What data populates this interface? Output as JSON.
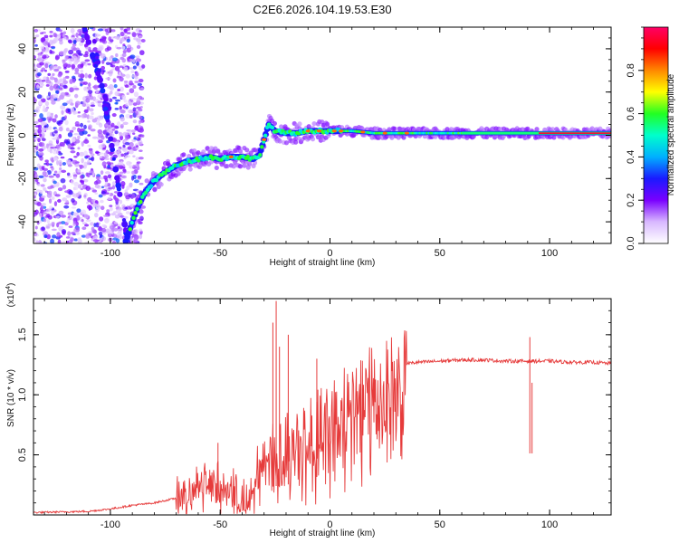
{
  "title": "C2E6.2026.104.19.53.E30",
  "colors": {
    "snr_line": "#e63b3b",
    "rainbow_stops": [
      "#ffffff",
      "#d8b8ff",
      "#7a00ff",
      "#1a1aff",
      "#00b0ff",
      "#00ffcc",
      "#22ff22",
      "#ffff00",
      "#ff8800",
      "#ff0000",
      "#ff0066"
    ]
  },
  "chart_data": [
    {
      "type": "heatmap",
      "name": "spectrogram",
      "xlabel": "Height of straight line (km)",
      "ylabel": "Frequency (Hz)",
      "xlim": [
        -135,
        128
      ],
      "ylim": [
        -50,
        50
      ],
      "xticks": [
        -100,
        -50,
        0,
        50,
        100
      ],
      "xtick_labels": [
        "-100",
        "-50",
        "0",
        "50",
        "100"
      ],
      "yticks": [
        -40,
        -20,
        0,
        20,
        40
      ],
      "ytick_labels": [
        "-40",
        "-20",
        "0",
        "20",
        "40"
      ],
      "ridge": {
        "x": [
          -93,
          -90,
          -87,
          -84,
          -80,
          -75,
          -70,
          -65,
          -60,
          -55,
          -50,
          -45,
          -40,
          -35,
          -32,
          -30,
          -28,
          -25,
          -20,
          -15,
          -10,
          -5,
          0,
          5,
          10,
          20,
          30,
          40,
          50,
          60,
          70,
          80,
          90,
          100,
          110,
          120,
          128
        ],
        "y": [
          -49,
          -40,
          -32,
          -26,
          -21,
          -17,
          -14,
          -12,
          -11,
          -10,
          -11,
          -10,
          -10,
          -11,
          -9,
          -2,
          5,
          2,
          1,
          1,
          2,
          2,
          2,
          2,
          2,
          1,
          1,
          1,
          1,
          1,
          1,
          1,
          1,
          1,
          1,
          1,
          1
        ]
      },
      "colorbar": {
        "label": "Normalized spectral amplitude",
        "range": [
          0,
          1
        ],
        "ticks": [
          0.0,
          0.2,
          0.4,
          0.6,
          0.8
        ],
        "tick_labels": [
          "0.0",
          "0.2",
          "0.4",
          "0.6",
          "0.8"
        ]
      }
    },
    {
      "type": "line",
      "name": "snr",
      "xlabel": "Height of straight line (km)",
      "ylabel": "SNR (10 * v/v)",
      "scale_note": "(x10",
      "scale_exp": "4",
      "scale_close": ")",
      "xlim": [
        -135,
        128
      ],
      "ylim": [
        0,
        1.8
      ],
      "xticks": [
        -100,
        -50,
        0,
        50,
        100
      ],
      "xtick_labels": [
        "-100",
        "-50",
        "0",
        "50",
        "100"
      ],
      "yticks": [
        0.5,
        1.0,
        1.5
      ],
      "ytick_labels": [
        "0.5",
        "1.0",
        "1.5"
      ],
      "envelope": {
        "x": [
          -135,
          -110,
          -100,
          -90,
          -80,
          -70,
          -65,
          -60,
          -55,
          -50,
          -45,
          -40,
          -35,
          -30,
          -25,
          -20,
          -15,
          -10,
          -5,
          0,
          5,
          10,
          15,
          20,
          25,
          30,
          35,
          40,
          50,
          60,
          70,
          80,
          90,
          100,
          110,
          120,
          128
        ],
        "y": [
          0.02,
          0.03,
          0.05,
          0.08,
          0.1,
          0.14,
          0.2,
          0.26,
          0.3,
          0.3,
          0.26,
          0.12,
          0.3,
          0.55,
          0.6,
          0.62,
          0.7,
          0.75,
          0.8,
          0.85,
          0.92,
          1.0,
          1.08,
          1.15,
          1.2,
          1.24,
          1.26,
          1.27,
          1.28,
          1.29,
          1.29,
          1.28,
          1.28,
          1.28,
          1.27,
          1.27,
          1.26
        ]
      },
      "peaks": [
        {
          "x": -51,
          "y": 0.6
        },
        {
          "x": -26,
          "y": 1.6
        },
        {
          "x": -24.5,
          "y": 1.78
        },
        {
          "x": -23,
          "y": 1.4
        },
        {
          "x": -19,
          "y": 1.5
        },
        {
          "x": -6,
          "y": 1.3
        },
        {
          "x": 91,
          "y": 1.48
        },
        {
          "x": 92,
          "y": 1.1
        }
      ]
    }
  ]
}
